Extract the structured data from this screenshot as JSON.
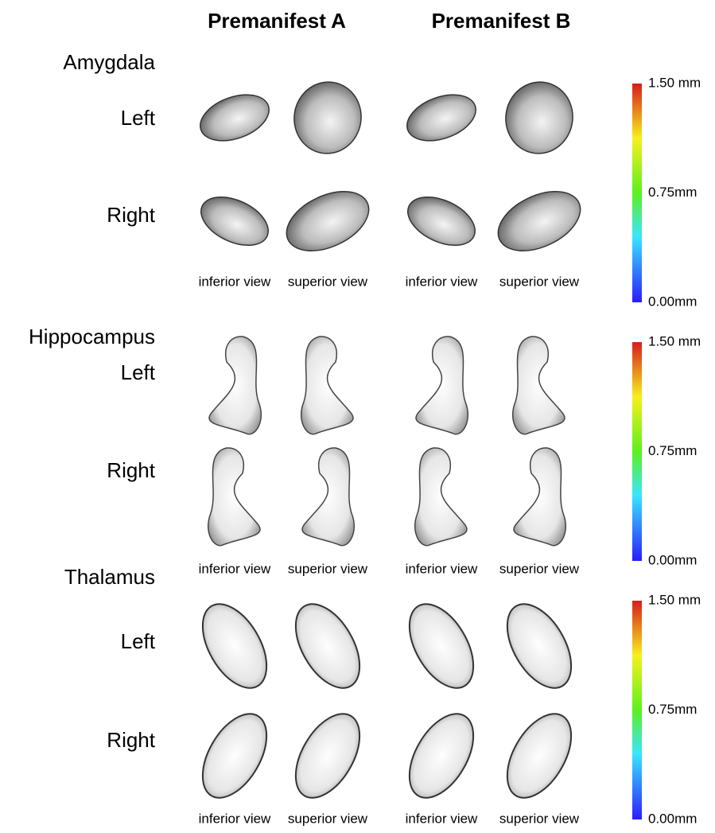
{
  "columns": [
    "Premanifest A",
    "Premanifest B"
  ],
  "sections": [
    {
      "title": "Amygdala",
      "rows": [
        "Left",
        "Right"
      ],
      "views": [
        "inferior view",
        "superior view",
        "inferior view",
        "superior view"
      ],
      "colorbar": {
        "max": "1.50 mm",
        "mid": "0.75mm",
        "min": "0.00mm"
      }
    },
    {
      "title": "Hippocampus",
      "rows": [
        "Left",
        "Right"
      ],
      "views": [
        "inferior view",
        "superior view",
        "inferior view",
        "superior view"
      ],
      "colorbar": {
        "max": "1.50 mm",
        "mid": "0.75mm",
        "min": "0.00mm"
      }
    },
    {
      "title": "Thalamus",
      "rows": [
        "Left",
        "Right"
      ],
      "views": [
        "inferior view",
        "superior view",
        "inferior view",
        "superior view"
      ],
      "colorbar": {
        "max": "1.50 mm",
        "mid": "0.75mm",
        "min": "0.00mm"
      }
    }
  ]
}
